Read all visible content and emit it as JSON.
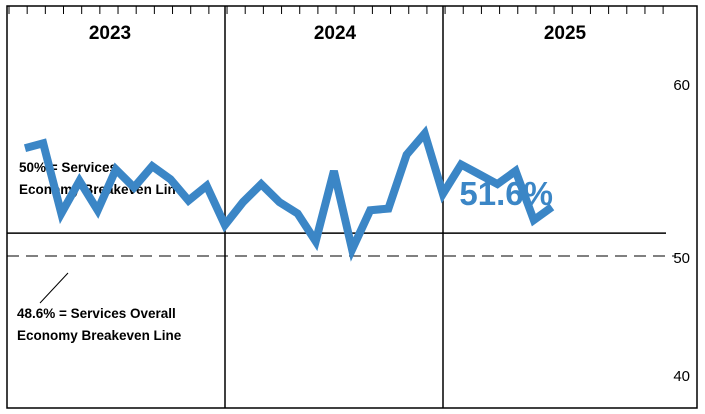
{
  "chart_data": {
    "type": "line",
    "title": "",
    "xlabel": "",
    "ylabel": "",
    "ylim": [
      39.3,
      63.9
    ],
    "y_ticks": [
      {
        "value": 60,
        "label": "60"
      },
      {
        "value": 50,
        "label": "50"
      },
      {
        "value": 40,
        "label": "40"
      }
    ],
    "years": [
      "2023",
      "2024",
      "2025"
    ],
    "x": [
      "2023-01",
      "2023-02",
      "2023-03",
      "2023-04",
      "2023-05",
      "2023-06",
      "2023-07",
      "2023-08",
      "2023-09",
      "2023-10",
      "2023-11",
      "2023-12",
      "2024-01",
      "2024-02",
      "2024-03",
      "2024-04",
      "2024-05",
      "2024-06",
      "2024-07",
      "2024-08",
      "2024-09",
      "2024-10",
      "2024-11",
      "2024-12",
      "2025-01",
      "2025-02",
      "2025-03",
      "2025-04",
      "2025-05",
      "2025-06"
    ],
    "series": [
      {
        "values": [
          55.2,
          55.5,
          51.2,
          53.2,
          51.4,
          53.9,
          52.8,
          54.1,
          53.3,
          52.0,
          52.9,
          50.5,
          51.9,
          53.0,
          51.9,
          51.2,
          49.5,
          53.8,
          49.0,
          51.4,
          51.5,
          54.8,
          56.1,
          52.4,
          54.2,
          53.6,
          53.0,
          53.8,
          50.8,
          51.6
        ],
        "color": "#3b86c6"
      }
    ],
    "reference_lines": [
      {
        "value": 50,
        "style": "solid",
        "label_lines": [
          "50% = Services",
          "Economy Breakeven Line"
        ]
      },
      {
        "value": 48.6,
        "style": "dashed",
        "label_lines": [
          "48.6% = Services Overall",
          "Economy Breakeven Line"
        ]
      }
    ],
    "callout": {
      "text": "51.6%",
      "color": "#3b86c6"
    },
    "grid": false
  }
}
